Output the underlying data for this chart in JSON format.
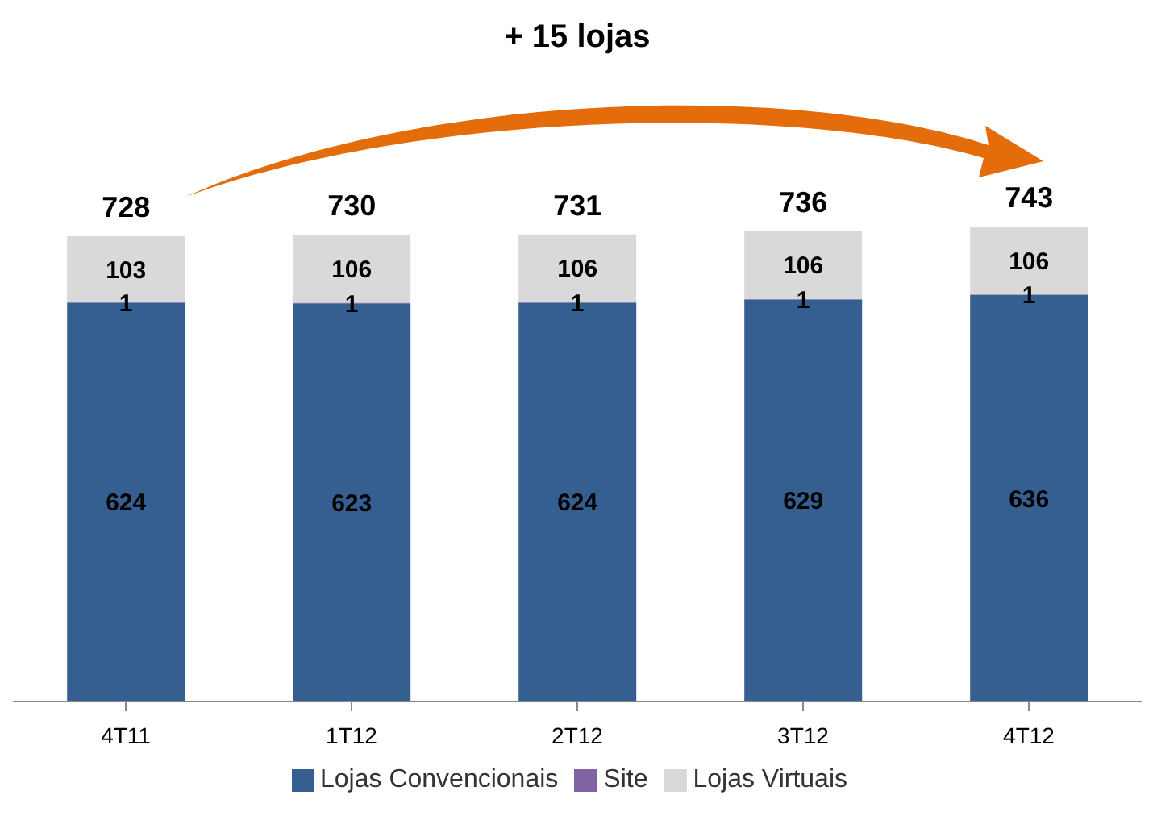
{
  "chart_data": {
    "type": "bar",
    "stacked": true,
    "categories": [
      "4T11",
      "1T12",
      "2T12",
      "3T12",
      "4T12"
    ],
    "series": [
      {
        "name": "Lojas Convencionais",
        "color": "#355f91",
        "values": [
          624,
          623,
          624,
          629,
          636
        ]
      },
      {
        "name": "Site",
        "color": "#8064a2",
        "values": [
          1,
          1,
          1,
          1,
          1
        ]
      },
      {
        "name": "Lojas Virtuais",
        "color": "#d9d9d9",
        "values": [
          103,
          106,
          106,
          106,
          106
        ]
      }
    ],
    "data_labels": true,
    "totals": [
      "728",
      "730",
      "731",
      "736",
      "743"
    ],
    "legend": "bottom",
    "annotations": [
      "+ 15 lojas"
    ]
  }
}
